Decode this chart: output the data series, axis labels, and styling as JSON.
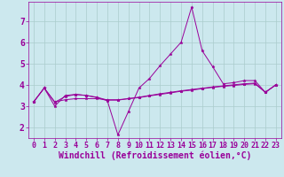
{
  "xlabel": "Windchill (Refroidissement éolien,°C)",
  "background_color": "#cce8ee",
  "line_color": "#990099",
  "xlim": [
    -0.5,
    23.5
  ],
  "ylim": [
    1.5,
    7.9
  ],
  "yticks": [
    2,
    3,
    4,
    5,
    6,
    7
  ],
  "xticks": [
    0,
    1,
    2,
    3,
    4,
    5,
    6,
    7,
    8,
    9,
    10,
    11,
    12,
    13,
    14,
    15,
    16,
    17,
    18,
    19,
    20,
    21,
    22,
    23
  ],
  "series1_x": [
    0,
    1,
    2,
    3,
    4,
    5,
    6,
    7,
    8,
    9,
    10,
    11,
    12,
    13,
    14,
    15,
    16,
    17,
    18,
    19,
    20,
    21,
    22,
    23
  ],
  "series1_y": [
    3.2,
    3.85,
    3.0,
    3.5,
    3.55,
    3.5,
    3.4,
    3.25,
    1.65,
    2.75,
    3.85,
    4.3,
    4.9,
    5.45,
    6.0,
    7.65,
    5.6,
    4.85,
    4.05,
    4.1,
    4.2,
    4.2,
    3.65,
    4.0
  ],
  "series2_x": [
    0,
    1,
    2,
    3,
    4,
    5,
    6,
    7,
    8,
    9,
    10,
    11,
    12,
    13,
    14,
    15,
    16,
    17,
    18,
    19,
    20,
    21,
    22,
    23
  ],
  "series2_y": [
    3.2,
    3.85,
    3.2,
    3.3,
    3.35,
    3.35,
    3.35,
    3.3,
    3.3,
    3.35,
    3.4,
    3.48,
    3.55,
    3.62,
    3.7,
    3.75,
    3.82,
    3.88,
    3.93,
    3.97,
    4.02,
    4.05,
    3.65,
    4.0
  ],
  "series3_x": [
    0,
    1,
    2,
    3,
    4,
    5,
    6,
    7,
    8,
    9,
    10,
    11,
    12,
    13,
    14,
    15,
    16,
    17,
    18,
    19,
    20,
    21,
    22,
    23
  ],
  "series3_y": [
    3.2,
    3.85,
    3.18,
    3.45,
    3.55,
    3.5,
    3.42,
    3.28,
    3.28,
    3.35,
    3.42,
    3.5,
    3.58,
    3.65,
    3.72,
    3.78,
    3.84,
    3.9,
    3.95,
    4.0,
    4.05,
    4.08,
    3.65,
    4.0
  ],
  "grid_color": "#aacccc",
  "tick_fontsize": 6,
  "xlabel_fontsize": 7
}
